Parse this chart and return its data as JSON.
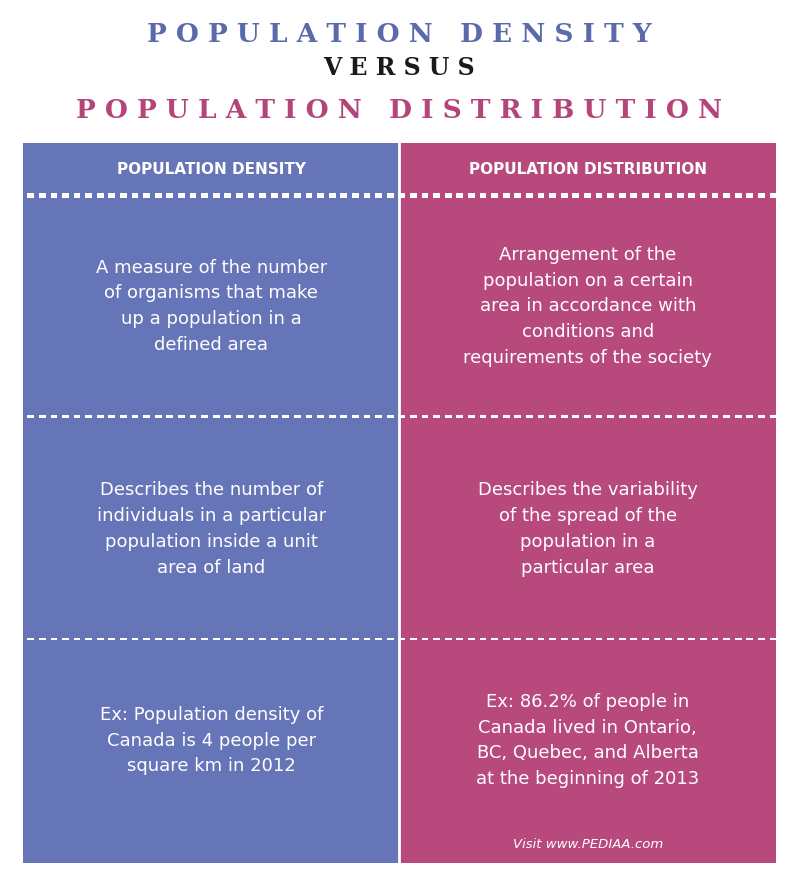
{
  "title1": "P O P U L A T I O N   D E N S I T Y",
  "versus": "V E R S U S",
  "title2": "P O P U L A T I O N   D I S T R I B U T I O N",
  "title1_color": "#5a6aaa",
  "versus_color": "#1a1a1a",
  "title2_color": "#b5447a",
  "left_bg": "#6674b8",
  "right_bg": "#b8497d",
  "header_left": "POPULATION DENSITY",
  "header_right": "POPULATION DISTRIBUTION",
  "header_text_color": "#ffffff",
  "content_text_color": "#ffffff",
  "dot_color": "#ffffff",
  "left_col_texts": [
    "A measure of the number\nof organisms that make\nup a population in a\ndefined area",
    "Describes the number of\nindividuals in a particular\npopulation inside a unit\narea of land",
    "Ex: Population density of\nCanada is 4 people per\nsquare km in 2012"
  ],
  "right_col_texts": [
    "Arrangement of the\npopulation on a certain\narea in accordance with\nconditions and\nrequirements of the society",
    "Describes the variability\nof the spread of the\npopulation in a\nparticular area",
    "Ex: 86.2% of people in\nCanada lived in Ontario,\nBC, Quebec, and Alberta\nat the beginning of 2013"
  ],
  "footer_text": "Visit www.PEDIAA.com",
  "background_color": "#ffffff"
}
